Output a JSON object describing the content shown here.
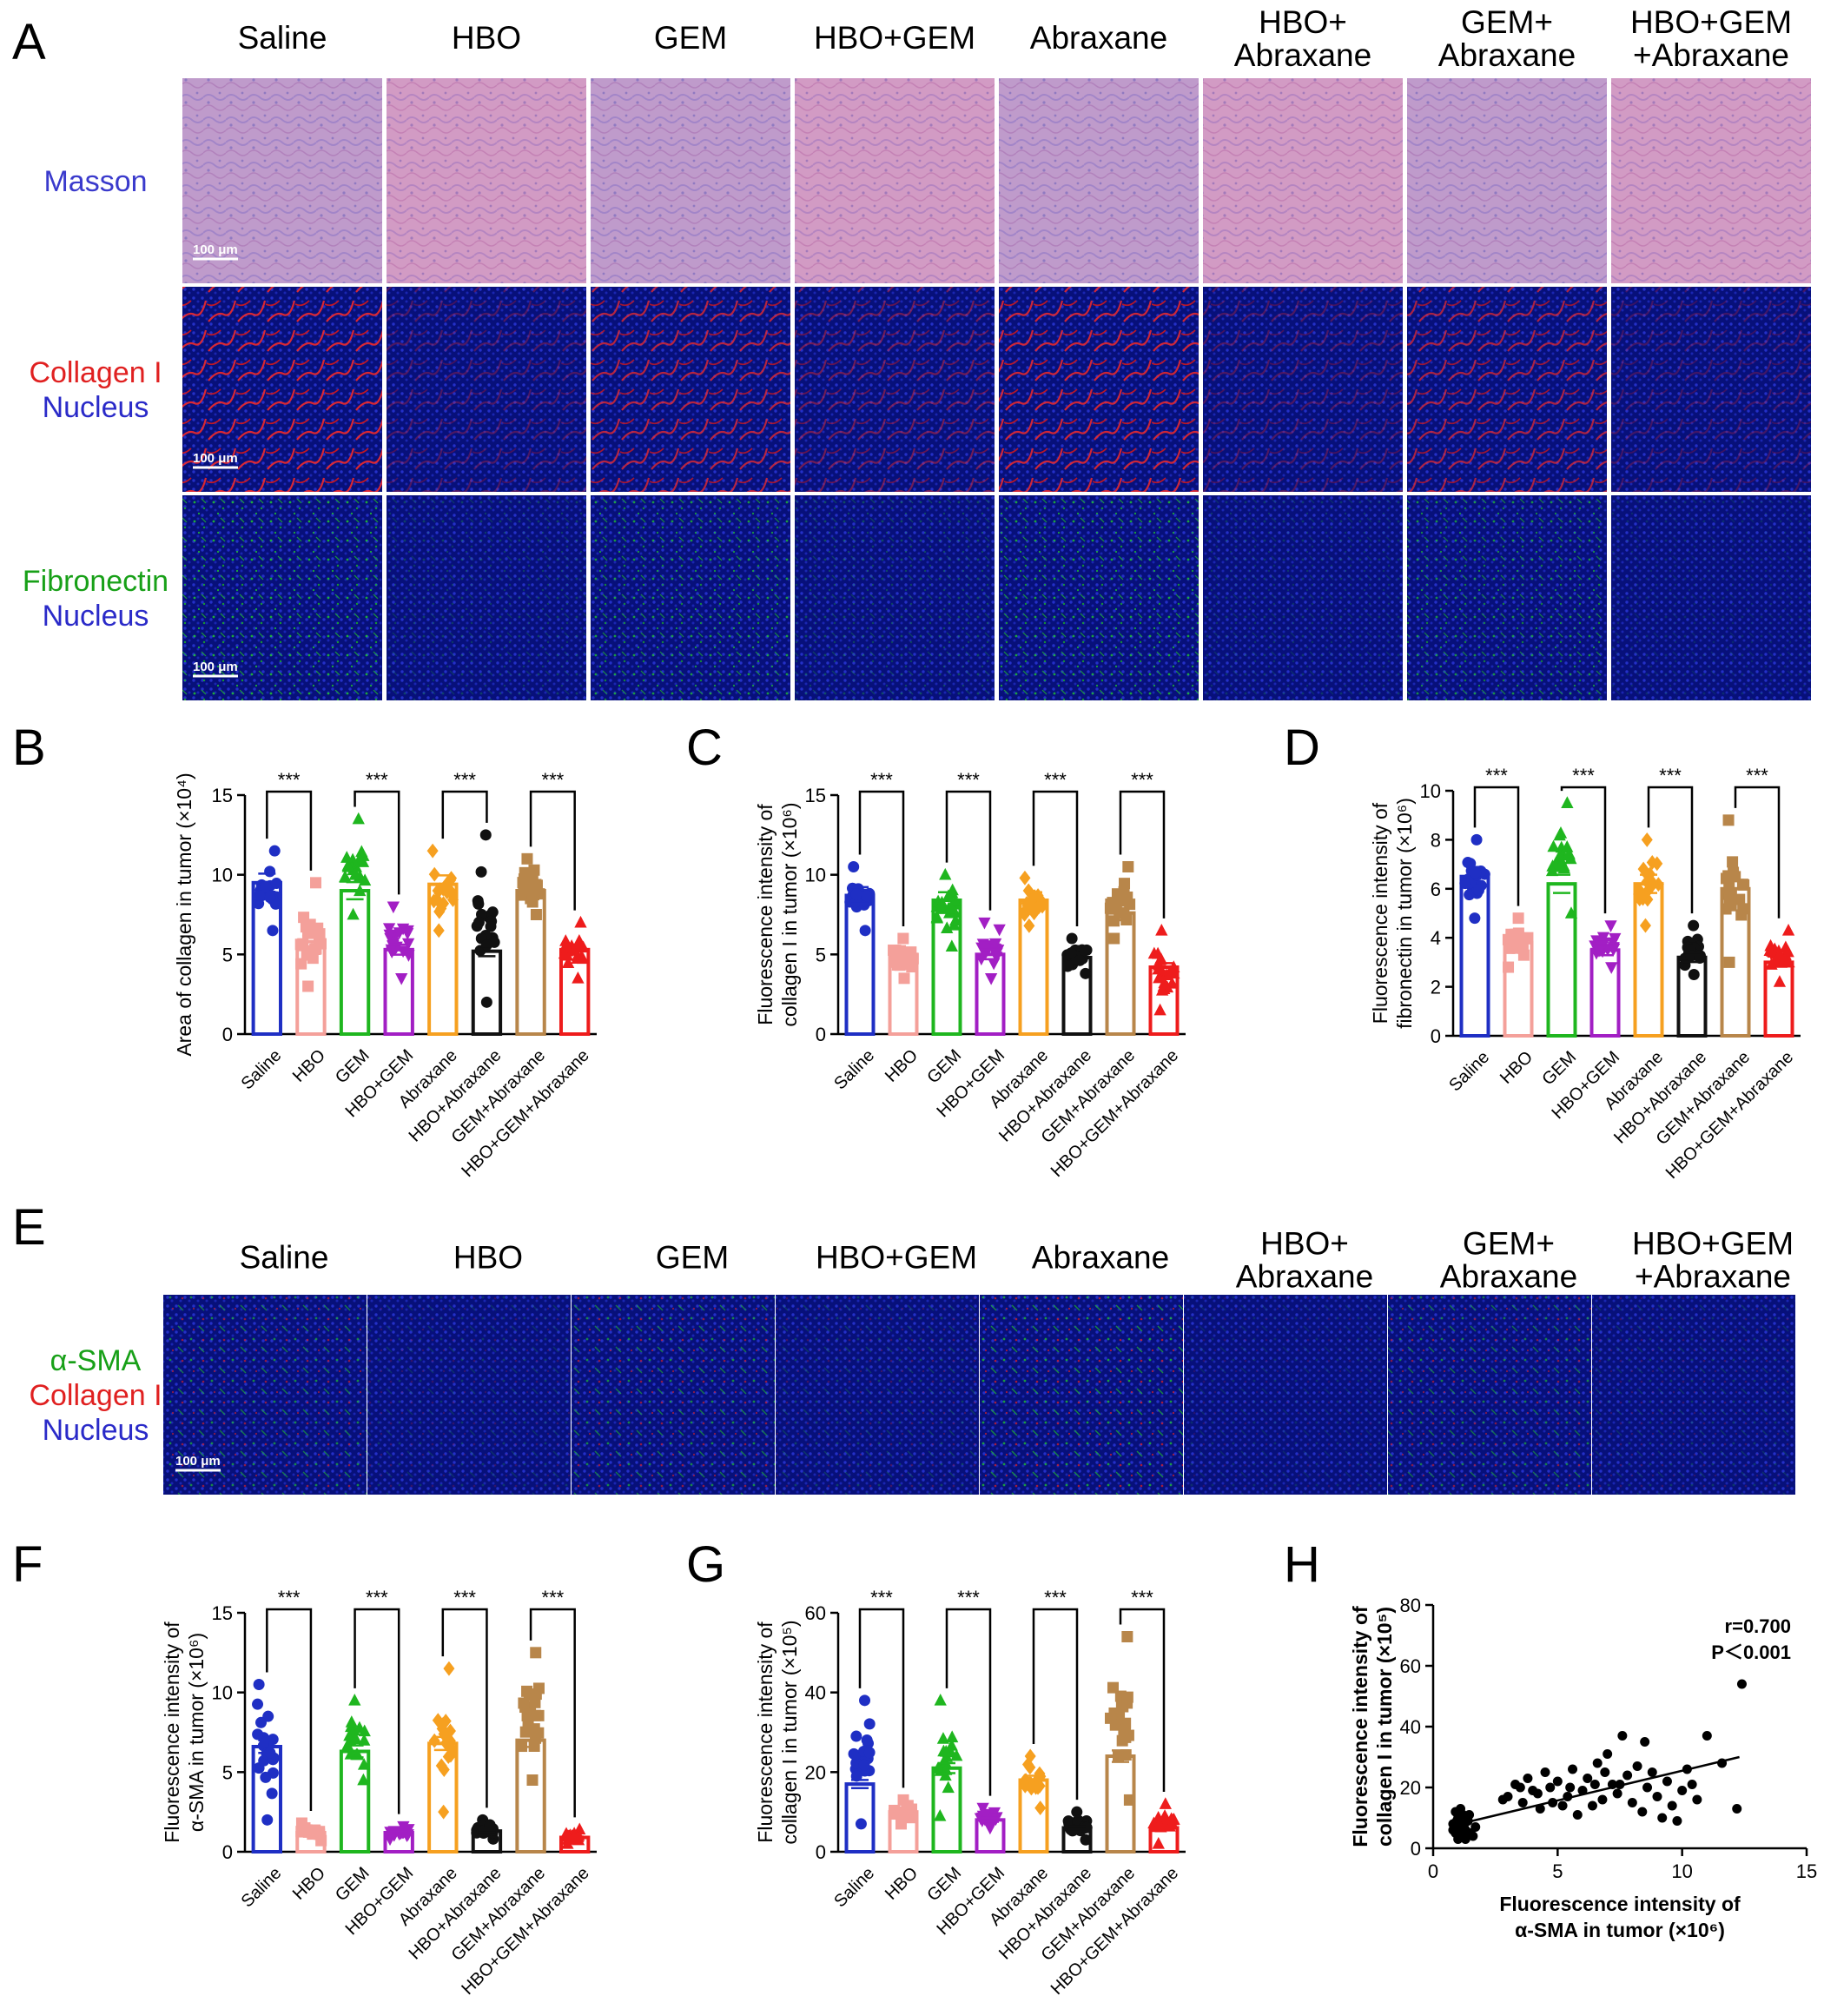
{
  "panel_labels": {
    "A": "A",
    "B": "B",
    "C": "C",
    "D": "D",
    "E": "E",
    "F": "F",
    "G": "G",
    "H": "H"
  },
  "panel_a": {
    "groups": [
      "Saline",
      "HBO",
      "GEM",
      "HBO+GEM",
      "Abraxane",
      "HBO+\nAbraxane",
      "GEM+\nAbraxane",
      "HBO+GEM\n+Abraxane"
    ],
    "rows": [
      {
        "lines": [
          {
            "text": "Masson",
            "color": "#3a3acc"
          }
        ],
        "scale_bar": "100 μm",
        "type": "masson"
      },
      {
        "lines": [
          {
            "text": "Collagen I",
            "color": "#e02020"
          },
          {
            "text": "Nucleus",
            "color": "#2a2ac8"
          }
        ],
        "scale_bar": "100 μm",
        "type": "collagen"
      },
      {
        "lines": [
          {
            "text": "Fibronectin",
            "color": "#18a018"
          },
          {
            "text": "Nucleus",
            "color": "#2a2ac8"
          }
        ],
        "scale_bar": "100 μm",
        "type": "fibronectin"
      }
    ],
    "signal_level": {
      "collagen": [
        0.9,
        0.3,
        0.75,
        0.45,
        0.85,
        0.3,
        0.7,
        0.25
      ],
      "fibronectin": [
        0.8,
        0.25,
        0.7,
        0.3,
        0.75,
        0.2,
        0.65,
        0.15
      ]
    }
  },
  "panel_e": {
    "groups": [
      "Saline",
      "HBO",
      "GEM",
      "HBO+GEM",
      "Abraxane",
      "HBO+\nAbraxane",
      "GEM+\nAbraxane",
      "HBO+GEM\n+Abraxane"
    ],
    "lines": [
      {
        "text": "α-SMA",
        "color": "#18a018"
      },
      {
        "text": "Collagen I",
        "color": "#e02020"
      },
      {
        "text": "Nucleus",
        "color": "#2a2ac8"
      }
    ],
    "scale_bar": "100 μm",
    "signal_level": [
      0.6,
      0.2,
      0.6,
      0.25,
      0.7,
      0.15,
      0.55,
      0.2
    ]
  },
  "series_colors": [
    "#1f2fc4",
    "#f4a09a",
    "#1fb61f",
    "#a21fc4",
    "#f6a020",
    "#111111",
    "#b8864a",
    "#ee1c1c"
  ],
  "series_markers": [
    "circle",
    "square",
    "triangle",
    "triangle-down",
    "diamond",
    "circle",
    "square",
    "triangle"
  ],
  "chart_data": [
    {
      "panel": "B",
      "type": "bar",
      "categories": [
        "Saline",
        "HBO",
        "GEM",
        "HBO+GEM",
        "Abraxane",
        "HBO+Abraxane",
        "GEM+Abraxane",
        "HBO+GEM+Abraxane"
      ],
      "values": [
        9.5,
        5.8,
        9.0,
        5.3,
        9.4,
        5.2,
        9.0,
        5.3
      ],
      "spread": [
        [
          6.5,
          11.5
        ],
        [
          3.0,
          9.5
        ],
        [
          7.5,
          13.5
        ],
        [
          3.5,
          8.0
        ],
        [
          6.5,
          11.5
        ],
        [
          2.0,
          12.5
        ],
        [
          7.5,
          11.0
        ],
        [
          3.5,
          7.0
        ]
      ],
      "ylabel": "Area of collagen in tumor (×10⁴)",
      "ylim": [
        0,
        15
      ],
      "yticks": [
        0,
        5,
        10,
        15
      ],
      "significance": [
        [
          0,
          1,
          "***"
        ],
        [
          2,
          3,
          "***"
        ],
        [
          4,
          5,
          "***"
        ],
        [
          6,
          7,
          "***"
        ]
      ]
    },
    {
      "panel": "C",
      "type": "bar",
      "categories": [
        "Saline",
        "HBO",
        "GEM",
        "HBO+GEM",
        "Abraxane",
        "HBO+Abraxane",
        "GEM+Abraxane",
        "HBO+GEM+Abraxane"
      ],
      "values": [
        8.7,
        5.0,
        8.4,
        5.0,
        8.4,
        4.8,
        7.6,
        4.2
      ],
      "spread": [
        [
          6.5,
          10.5
        ],
        [
          3.5,
          6.0
        ],
        [
          5.5,
          10.0
        ],
        [
          3.5,
          7.0
        ],
        [
          6.8,
          9.8
        ],
        [
          3.8,
          6.0
        ],
        [
          6.0,
          10.5
        ],
        [
          1.5,
          6.5
        ]
      ],
      "ylabel": "Fluorescence intensity of\ncollagen I in tumor (×10⁶)",
      "ylim": [
        0,
        15
      ],
      "yticks": [
        0,
        5,
        10,
        15
      ],
      "significance": [
        [
          0,
          1,
          "***"
        ],
        [
          2,
          3,
          "***"
        ],
        [
          4,
          5,
          "***"
        ],
        [
          6,
          7,
          "***"
        ]
      ]
    },
    {
      "panel": "D",
      "type": "bar",
      "categories": [
        "Saline",
        "HBO",
        "GEM",
        "HBO+GEM",
        "Abraxane",
        "HBO+Abraxane",
        "GEM+Abraxane",
        "HBO+GEM+Abraxane"
      ],
      "values": [
        6.5,
        3.8,
        6.2,
        3.5,
        6.2,
        3.2,
        6.0,
        3.0
      ],
      "spread": [
        [
          4.8,
          8.0
        ],
        [
          2.8,
          4.8
        ],
        [
          5.0,
          9.5
        ],
        [
          2.8,
          4.5
        ],
        [
          4.5,
          8.0
        ],
        [
          2.5,
          4.5
        ],
        [
          3.0,
          8.8
        ],
        [
          2.2,
          4.3
        ]
      ],
      "ylabel": "Fluorescence intensity of\nfibronectin in tumor (×10⁶)",
      "ylim": [
        0,
        10
      ],
      "yticks": [
        0,
        2,
        4,
        6,
        8,
        10
      ],
      "significance": [
        [
          0,
          1,
          "***"
        ],
        [
          2,
          3,
          "***"
        ],
        [
          4,
          5,
          "***"
        ],
        [
          6,
          7,
          "***"
        ]
      ]
    },
    {
      "panel": "F",
      "type": "bar",
      "categories": [
        "Saline",
        "HBO",
        "GEM",
        "HBO+GEM",
        "Abraxane",
        "HBO+Abraxane",
        "GEM+Abraxane",
        "HBO+GEM+Abraxane"
      ],
      "values": [
        6.6,
        1.2,
        6.3,
        1.2,
        6.8,
        1.3,
        7.0,
        0.9
      ],
      "spread": [
        [
          2.0,
          10.5
        ],
        [
          0.7,
          1.8
        ],
        [
          4.5,
          9.5
        ],
        [
          0.8,
          1.6
        ],
        [
          2.5,
          11.5
        ],
        [
          0.8,
          2.0
        ],
        [
          4.5,
          12.5
        ],
        [
          0.5,
          1.4
        ]
      ],
      "ylabel": "Fluorescence intensity of\nα-SMA in tumor (×10⁶)",
      "ylim": [
        0,
        15
      ],
      "yticks": [
        0,
        5,
        10,
        15
      ],
      "significance": [
        [
          0,
          1,
          "***"
        ],
        [
          2,
          3,
          "***"
        ],
        [
          4,
          5,
          "***"
        ],
        [
          6,
          7,
          "***"
        ]
      ]
    },
    {
      "panel": "G",
      "type": "bar",
      "categories": [
        "Saline",
        "HBO",
        "GEM",
        "HBO+GEM",
        "Abraxane",
        "HBO+Abraxane",
        "GEM+Abraxane",
        "HBO+GEM+Abraxane"
      ],
      "values": [
        17,
        10,
        21,
        8,
        18,
        6,
        24,
        6
      ],
      "spread": [
        [
          7,
          38
        ],
        [
          7,
          13
        ],
        [
          9,
          38
        ],
        [
          6,
          11
        ],
        [
          11,
          24
        ],
        [
          3,
          10
        ],
        [
          13,
          54
        ],
        [
          2,
          12
        ]
      ],
      "ylabel": "Fluorescence intensity of\ncollagen I in tumor (×10⁵)",
      "ylim": [
        0,
        60
      ],
      "yticks": [
        0,
        20,
        40,
        60
      ],
      "significance": [
        [
          0,
          1,
          "***"
        ],
        [
          2,
          3,
          "***"
        ],
        [
          4,
          5,
          "***"
        ],
        [
          6,
          7,
          "***"
        ]
      ]
    },
    {
      "panel": "H",
      "type": "scatter",
      "xlabel": "Fluorescence intensity of\nα-SMA in tumor (×10⁶)",
      "ylabel": "Fluorescence intensity of\ncollagen I in tumor (×10⁵)",
      "xlim": [
        0,
        15
      ],
      "ylim": [
        0,
        80
      ],
      "xticks": [
        0,
        5,
        10,
        15
      ],
      "yticks": [
        0,
        20,
        40,
        60,
        80
      ],
      "annotation": [
        "r=0.700",
        "P＜0.001"
      ],
      "fit": {
        "x": [
          0.8,
          12.3
        ],
        "y": [
          7.5,
          30
        ]
      },
      "points": [
        [
          0.8,
          8
        ],
        [
          0.9,
          5
        ],
        [
          1.0,
          10
        ],
        [
          1.1,
          7
        ],
        [
          1.2,
          4
        ],
        [
          0.9,
          12
        ],
        [
          1.3,
          6
        ],
        [
          1.0,
          3
        ],
        [
          1.4,
          9
        ],
        [
          1.5,
          5
        ],
        [
          1.2,
          11
        ],
        [
          0.8,
          6
        ],
        [
          1.6,
          4
        ],
        [
          1.1,
          13
        ],
        [
          1.7,
          7
        ],
        [
          1.3,
          3
        ],
        [
          0.95,
          9
        ],
        [
          1.45,
          11
        ],
        [
          1.05,
          5
        ],
        [
          1.25,
          8
        ],
        [
          3.0,
          17
        ],
        [
          3.3,
          21
        ],
        [
          3.6,
          15
        ],
        [
          3.8,
          23
        ],
        [
          4.0,
          19
        ],
        [
          4.3,
          13
        ],
        [
          4.5,
          25
        ],
        [
          4.7,
          20
        ],
        [
          5.0,
          22
        ],
        [
          5.2,
          14
        ],
        [
          5.4,
          17
        ],
        [
          5.6,
          26
        ],
        [
          5.8,
          11
        ],
        [
          6.0,
          19
        ],
        [
          6.2,
          23
        ],
        [
          6.4,
          14
        ],
        [
          6.6,
          28
        ],
        [
          6.8,
          16
        ],
        [
          7.0,
          31
        ],
        [
          7.2,
          21
        ],
        [
          7.4,
          18
        ],
        [
          7.6,
          37
        ],
        [
          7.8,
          24
        ],
        [
          8.0,
          15
        ],
        [
          8.2,
          27
        ],
        [
          8.4,
          12
        ],
        [
          8.6,
          20
        ],
        [
          8.8,
          25
        ],
        [
          9.0,
          17
        ],
        [
          9.2,
          10
        ],
        [
          9.4,
          22
        ],
        [
          9.6,
          14
        ],
        [
          9.8,
          9
        ],
        [
          10.0,
          19
        ],
        [
          10.2,
          26
        ],
        [
          10.4,
          21
        ],
        [
          10.6,
          16
        ],
        [
          11.0,
          37
        ],
        [
          11.6,
          28
        ],
        [
          12.2,
          13
        ],
        [
          12.4,
          54
        ],
        [
          3.5,
          20
        ],
        [
          4.8,
          15
        ],
        [
          5.5,
          20
        ],
        [
          6.5,
          21
        ],
        [
          7.5,
          21
        ],
        [
          8.5,
          35
        ],
        [
          2.8,
          16
        ],
        [
          4.2,
          18
        ],
        [
          6.9,
          25
        ]
      ]
    }
  ]
}
